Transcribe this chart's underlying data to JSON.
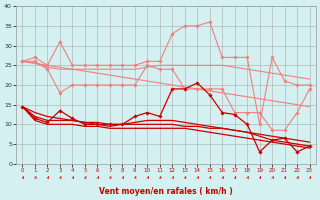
{
  "x": [
    0,
    1,
    2,
    3,
    4,
    5,
    6,
    7,
    8,
    9,
    10,
    11,
    12,
    13,
    14,
    15,
    16,
    17,
    18,
    19,
    20,
    21,
    22,
    23
  ],
  "series": [
    {
      "name": "line1_light",
      "y": [
        26,
        27,
        25,
        31,
        25,
        25,
        25,
        25,
        25,
        25,
        26,
        26,
        33,
        35,
        35,
        36,
        27,
        27,
        27,
        10,
        27,
        21,
        20,
        20
      ],
      "color": "#f08080",
      "lw": 0.8,
      "marker": "D",
      "ms": 1.8
    },
    {
      "name": "line2_light",
      "y": [
        26,
        25.5,
        24.5,
        24,
        24,
        24,
        24,
        24,
        24,
        24,
        24.5,
        25,
        25,
        25,
        25,
        25,
        25,
        24.5,
        24,
        23.5,
        23,
        22.5,
        22,
        21.5
      ],
      "color": "#f08080",
      "lw": 0.8,
      "marker": null,
      "ms": 0
    },
    {
      "name": "line3_light",
      "y": [
        26,
        26,
        24,
        18,
        20,
        20,
        20,
        20,
        20,
        20,
        25,
        24,
        24,
        19,
        19,
        19,
        19,
        13,
        13,
        13,
        8.5,
        8.5,
        13,
        19
      ],
      "color": "#f08080",
      "lw": 0.8,
      "marker": "D",
      "ms": 1.8
    },
    {
      "name": "line4_light",
      "y": [
        26,
        25.5,
        25,
        24.5,
        24,
        23.5,
        23,
        22.5,
        22,
        21.5,
        21,
        20.5,
        20,
        19.5,
        19,
        18.5,
        18,
        17.5,
        17,
        16.5,
        16,
        15.5,
        15,
        14.5
      ],
      "color": "#f08080",
      "lw": 0.8,
      "marker": null,
      "ms": 0
    },
    {
      "name": "line5_dark",
      "y": [
        14.5,
        11.5,
        10.5,
        13.5,
        11.5,
        10,
        10,
        10,
        10,
        12,
        13,
        12,
        19,
        19,
        20.5,
        17.5,
        13,
        12.5,
        10,
        3,
        6,
        6.5,
        3,
        4.5
      ],
      "color": "#cc0000",
      "lw": 0.9,
      "marker": "D",
      "ms": 1.8
    },
    {
      "name": "line6_dark",
      "y": [
        14.5,
        13,
        12,
        11.5,
        11,
        10.5,
        10.5,
        10,
        10,
        10,
        10,
        10,
        10,
        9.5,
        9.5,
        9,
        9,
        8.5,
        8,
        7.5,
        7,
        6.5,
        6,
        5.5
      ],
      "color": "#cc0000",
      "lw": 0.9,
      "marker": null,
      "ms": 0
    },
    {
      "name": "line7_dark",
      "y": [
        14.5,
        12,
        11,
        11,
        11,
        10.5,
        10,
        9.5,
        10,
        10.5,
        11,
        11,
        11,
        10.5,
        10,
        9.5,
        9,
        8.5,
        8,
        7,
        6,
        5.5,
        5,
        4.5
      ],
      "color": "#cc0000",
      "lw": 0.9,
      "marker": null,
      "ms": 0
    },
    {
      "name": "line8_dark",
      "y": [
        14.5,
        11,
        10,
        10,
        10,
        9.5,
        9.5,
        9,
        9,
        9,
        9,
        9,
        9,
        9,
        8.5,
        8,
        7.5,
        7,
        6.5,
        6,
        5.5,
        5,
        4.5,
        4
      ],
      "color": "#cc0000",
      "lw": 0.9,
      "marker": null,
      "ms": 0
    }
  ],
  "xlabel": "Vent moyen/en rafales ( km/h )",
  "xlim": [
    -0.5,
    23.5
  ],
  "ylim": [
    0,
    40
  ],
  "yticks": [
    0,
    5,
    10,
    15,
    20,
    25,
    30,
    35,
    40
  ],
  "xticks": [
    0,
    1,
    2,
    3,
    4,
    5,
    6,
    7,
    8,
    9,
    10,
    11,
    12,
    13,
    14,
    15,
    16,
    17,
    18,
    19,
    20,
    21,
    22,
    23
  ],
  "bg_color": "#d4f0f0",
  "grid_color": "#aaaaaa",
  "arrow_color": "#cc0000",
  "figsize": [
    3.2,
    2.0
  ],
  "dpi": 100
}
